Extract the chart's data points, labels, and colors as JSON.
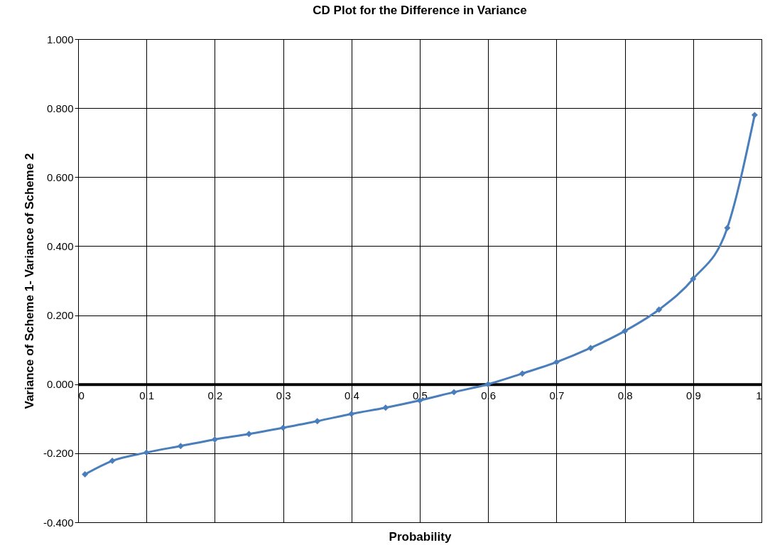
{
  "chart_data": {
    "type": "line",
    "title": "CD Plot for the Difference in Variance",
    "xlabel": "Probability",
    "ylabel": "Variance of Scheme 1- Variance of Scheme 2",
    "x": [
      0.01,
      0.05,
      0.1,
      0.15,
      0.2,
      0.25,
      0.3,
      0.35,
      0.4,
      0.45,
      0.5,
      0.55,
      0.6,
      0.65,
      0.7,
      0.75,
      0.8,
      0.85,
      0.9,
      0.95,
      0.99
    ],
    "series": [
      {
        "color": "#4a7ebb",
        "values": [
          -0.261,
          -0.222,
          -0.198,
          -0.179,
          -0.16,
          -0.144,
          -0.126,
          -0.107,
          -0.086,
          -0.068,
          -0.047,
          -0.023,
          0.0,
          0.031,
          0.064,
          0.105,
          0.154,
          0.216,
          0.305,
          0.453,
          0.78
        ]
      }
    ],
    "xlim": [
      0,
      1
    ],
    "xticks": [
      0,
      0.1,
      0.2,
      0.3,
      0.4,
      0.5,
      0.6,
      0.7,
      0.8,
      0.9,
      1
    ],
    "ylim": [
      -0.4,
      1
    ],
    "yticks": [
      {
        "value": -0.4,
        "label": "-0.400"
      },
      {
        "value": -0.2,
        "label": "-0.200"
      },
      {
        "value": 0,
        "label": "0.000"
      },
      {
        "value": 0.2,
        "label": "0.200"
      },
      {
        "value": 0.4,
        "label": "0.400"
      },
      {
        "value": 0.6,
        "label": "0.600"
      },
      {
        "value": 0.8,
        "label": "0.800"
      },
      {
        "value": 1,
        "label": "1.000"
      }
    ],
    "grid": true,
    "marker": "diamond",
    "line_style": "solid"
  }
}
